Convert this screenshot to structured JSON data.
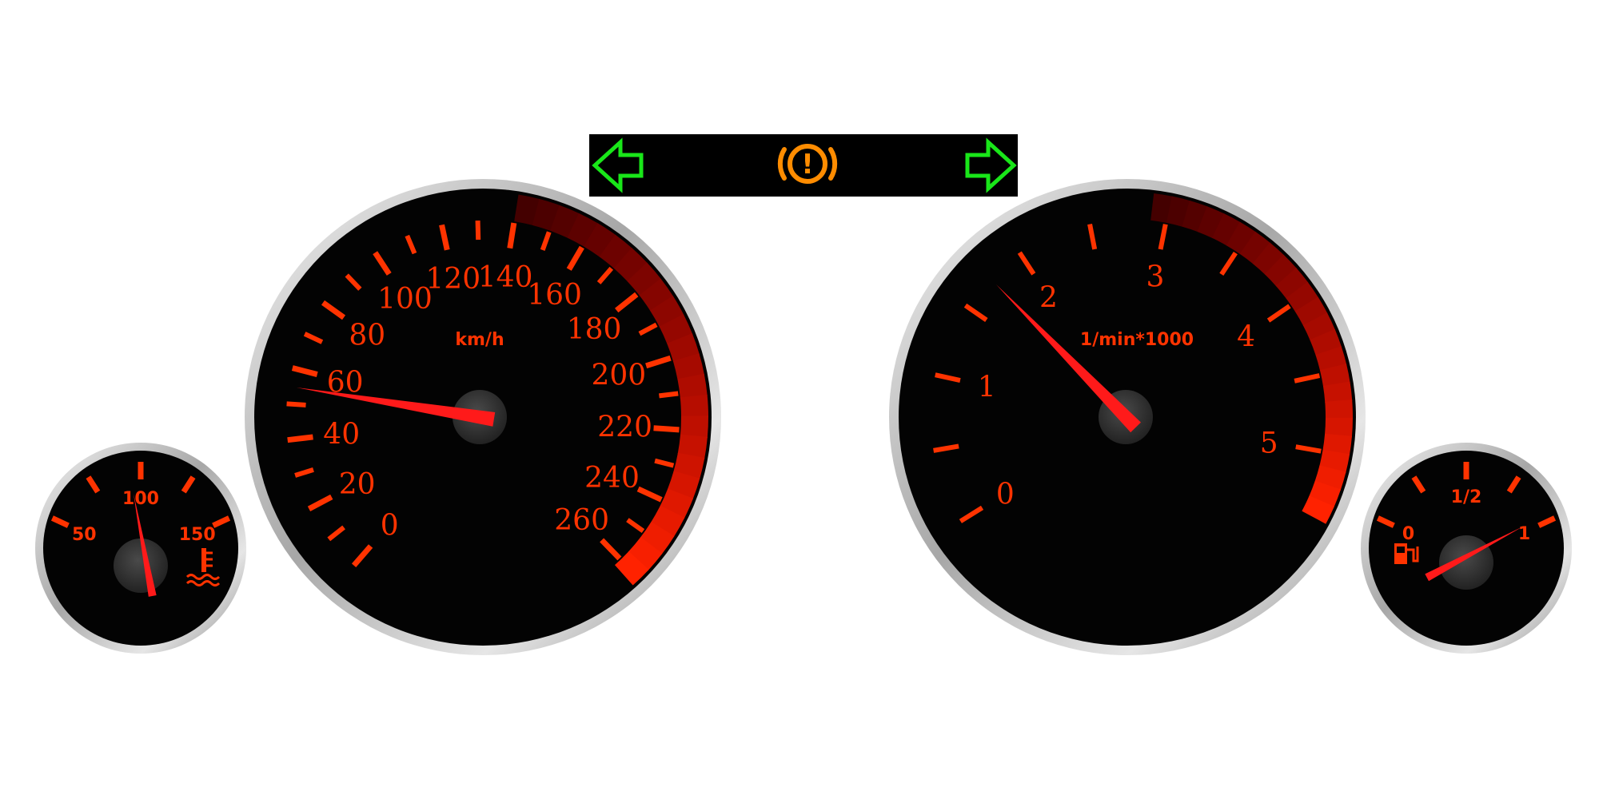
{
  "indicators": {
    "left_arrow_icon": "left-turn-arrow",
    "right_arrow_icon": "right-turn-arrow",
    "warning_icon": "brake-warning",
    "warning_symbol": "!",
    "arrow_color": "#19e619",
    "warning_color": "#ff8c00",
    "panel_color": "#000000"
  },
  "speedometer": {
    "unit": "km/h",
    "labels": [
      "0",
      "20",
      "40",
      "60",
      "80",
      "100",
      "120",
      "140",
      "160",
      "180",
      "200",
      "220",
      "240",
      "260"
    ],
    "range": [
      0,
      260
    ],
    "value": 55,
    "redzone_from": 140
  },
  "tachometer": {
    "unit": "1/min*1000",
    "labels": [
      "0",
      "1",
      "2",
      "3",
      "4",
      "5"
    ],
    "range": [
      0,
      5
    ],
    "value": 1.75,
    "redzone_from": 2.9
  },
  "temperature": {
    "labels": [
      "50",
      "100",
      "150"
    ],
    "range": [
      50,
      150
    ],
    "value": 95,
    "icon": "coolant-temperature-icon"
  },
  "fuel": {
    "labels": [
      "0",
      "1/2",
      "1"
    ],
    "range": [
      0,
      1
    ],
    "value": 1.0,
    "icon": "fuel-pump-icon"
  },
  "colors": {
    "accent": "#ff3300",
    "needle": "#ff1a1a",
    "dial": "#030303",
    "bezel": "#c8c8c8"
  }
}
